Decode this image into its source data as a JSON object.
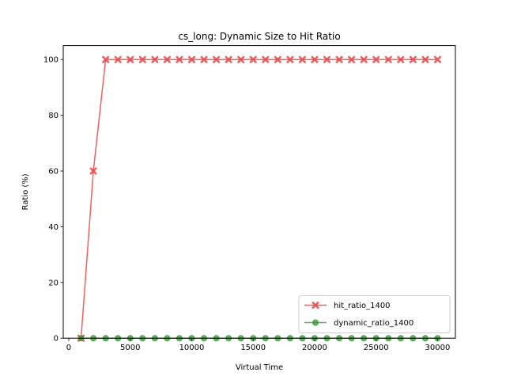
{
  "chart_data": {
    "type": "line",
    "title": "cs_long: Dynamic Size to Hit Ratio",
    "xlabel": "Virtual Time",
    "ylabel": "Ratio (%)",
    "xlim": [
      -450,
      31450
    ],
    "ylim": [
      0,
      105
    ],
    "xticks": [
      0,
      5000,
      10000,
      15000,
      20000,
      25000,
      30000
    ],
    "yticks": [
      0,
      20,
      40,
      60,
      80,
      100
    ],
    "grid": false,
    "legend_position": "lower-right",
    "x": [
      1000,
      2000,
      3000,
      4000,
      5000,
      6000,
      7000,
      8000,
      9000,
      10000,
      11000,
      12000,
      13000,
      14000,
      15000,
      16000,
      17000,
      18000,
      19000,
      20000,
      21000,
      22000,
      23000,
      24000,
      25000,
      26000,
      27000,
      28000,
      29000,
      30000
    ],
    "series": [
      {
        "name": "hit_ratio_1400",
        "color": "#ee4444",
        "marker": "x",
        "values": [
          0,
          60,
          100,
          100,
          100,
          100,
          100,
          100,
          100,
          100,
          100,
          100,
          100,
          100,
          100,
          100,
          100,
          100,
          100,
          100,
          100,
          100,
          100,
          100,
          100,
          100,
          100,
          100,
          100,
          100
        ]
      },
      {
        "name": "dynamic_ratio_1400",
        "color": "#3a9a3a",
        "marker": "o",
        "values": [
          0,
          0,
          0,
          0,
          0,
          0,
          0,
          0,
          0,
          0,
          0,
          0,
          0,
          0,
          0,
          0,
          0,
          0,
          0,
          0,
          0,
          0,
          0,
          0,
          0,
          0,
          0,
          0,
          0,
          0
        ]
      }
    ]
  }
}
